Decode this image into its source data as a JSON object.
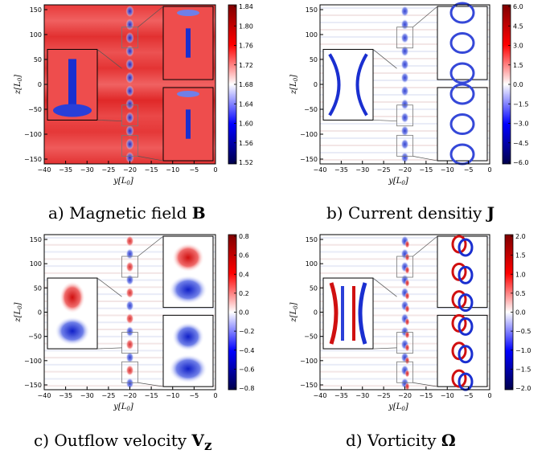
{
  "panels": [
    {
      "key": "a",
      "caption": {
        "prefix": "a) Magnetic field ",
        "symbol": "B",
        "sub": ""
      },
      "xlabel": "y[L",
      "xlabel_sub": "0",
      "ylabel": "z[L",
      "ylabel_sub": "0",
      "xticks": [
        "−40",
        "−35",
        "−30",
        "−25",
        "−20",
        "−15",
        "−10",
        "−5",
        "0"
      ],
      "yticks": [
        "150",
        "100",
        "50",
        "0",
        "−50",
        "−100",
        "−150"
      ],
      "colorbar": {
        "ticks": [
          "1.84",
          "1.80",
          "1.76",
          "1.72",
          "1.68",
          "1.64",
          "1.60",
          "1.56",
          "1.52"
        ],
        "scheme": "seismic",
        "background": "red"
      }
    },
    {
      "key": "b",
      "caption": {
        "prefix": "b) Current densitiy ",
        "symbol": "J",
        "sub": ""
      },
      "xlabel": "y[L",
      "xlabel_sub": "0",
      "ylabel": "z[L",
      "ylabel_sub": "0",
      "xticks": [
        "−40",
        "−35",
        "−30",
        "−25",
        "−20",
        "−15",
        "−10",
        "−5",
        "0"
      ],
      "yticks": [
        "150",
        "100",
        "50",
        "0",
        "−50",
        "−100",
        "−150"
      ],
      "colorbar": {
        "ticks": [
          "6.0",
          "4.5",
          "3.0",
          "1.5",
          "0.0",
          "−1.5",
          "−3.0",
          "−4.5",
          "−6.0"
        ],
        "scheme": "seismic",
        "background": "white"
      }
    },
    {
      "key": "c",
      "caption": {
        "prefix": "c) Outflow velocity ",
        "symbol": "V",
        "sub": "z"
      },
      "xlabel": "y[L",
      "xlabel_sub": "0",
      "ylabel": "z[L",
      "ylabel_sub": "0",
      "xticks": [
        "−40",
        "−35",
        "−30",
        "−25",
        "−20",
        "−15",
        "−10",
        "−5",
        "0"
      ],
      "yticks": [
        "150",
        "100",
        "50",
        "0",
        "−50",
        "−100",
        "−150"
      ],
      "colorbar": {
        "ticks": [
          "0.8",
          "0.6",
          "0.4",
          "0.2",
          "0.0",
          "−0.2",
          "−0.4",
          "−0.6",
          "−0.8"
        ],
        "scheme": "seismic",
        "background": "white"
      }
    },
    {
      "key": "d",
      "caption": {
        "prefix": "d) Vorticity ",
        "symbol": "Ω",
        "sub": ""
      },
      "xlabel": "y[L",
      "xlabel_sub": "0",
      "ylabel": "z[L",
      "ylabel_sub": "0",
      "xticks": [
        "−40",
        "−35",
        "−30",
        "−25",
        "−20",
        "−15",
        "−10",
        "−5",
        "0"
      ],
      "yticks": [
        "150",
        "100",
        "50",
        "0",
        "−50",
        "−100",
        "−150"
      ],
      "colorbar": {
        "ticks": [
          "2.0",
          "1.5",
          "1.0",
          "0.5",
          "0.0",
          "−0.5",
          "−1.0",
          "−1.5",
          "−2.0"
        ],
        "scheme": "seismic",
        "background": "white"
      }
    }
  ]
}
